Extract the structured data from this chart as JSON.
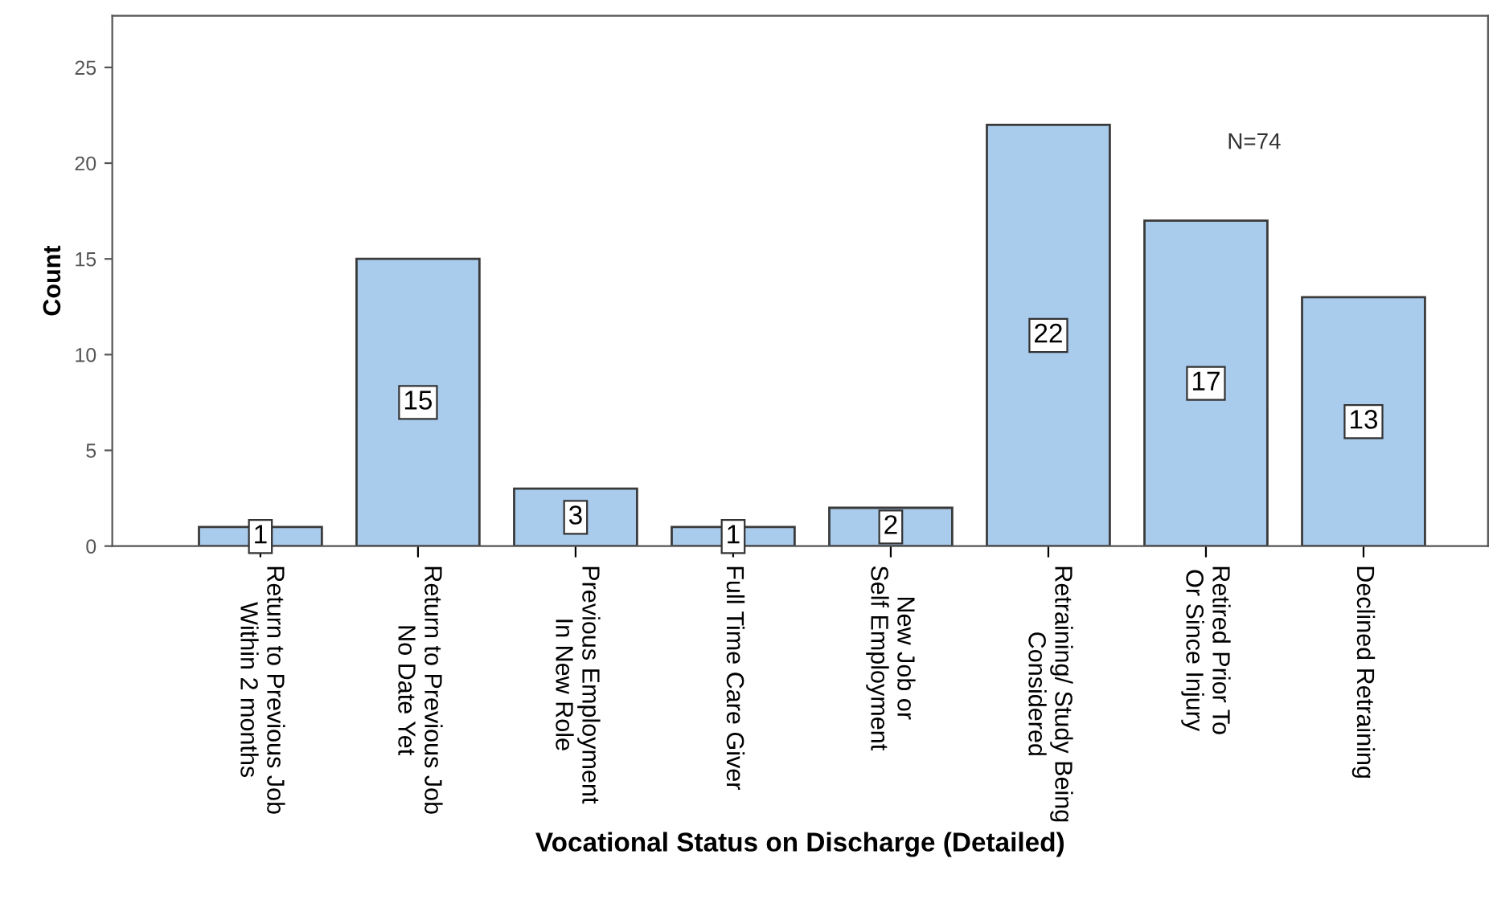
{
  "chart_data": {
    "type": "bar",
    "xlabel": "Vocational Status on Discharge (Detailed)",
    "ylabel": "Count",
    "categories": [
      "Return to Previous Job\nWithin 2 months",
      "Return to Previous Job\nNo Date Yet",
      "Previous Employment\nIn New Role",
      "Full Time Care Giver",
      "New Job or\nSelf Employment",
      "Retraining/ Study Being\nConsidered",
      "Retired Prior To\nOr Since Injury",
      "Declined Retraining"
    ],
    "values": [
      1,
      15,
      3,
      1,
      2,
      22,
      17,
      13
    ],
    "color": "#a9cbec",
    "ylim": [
      0,
      27.7
    ],
    "yticks": [
      0,
      5,
      10,
      15,
      20,
      25
    ],
    "data_labels": true,
    "grid": false,
    "annotations": [
      "N=74"
    ]
  }
}
